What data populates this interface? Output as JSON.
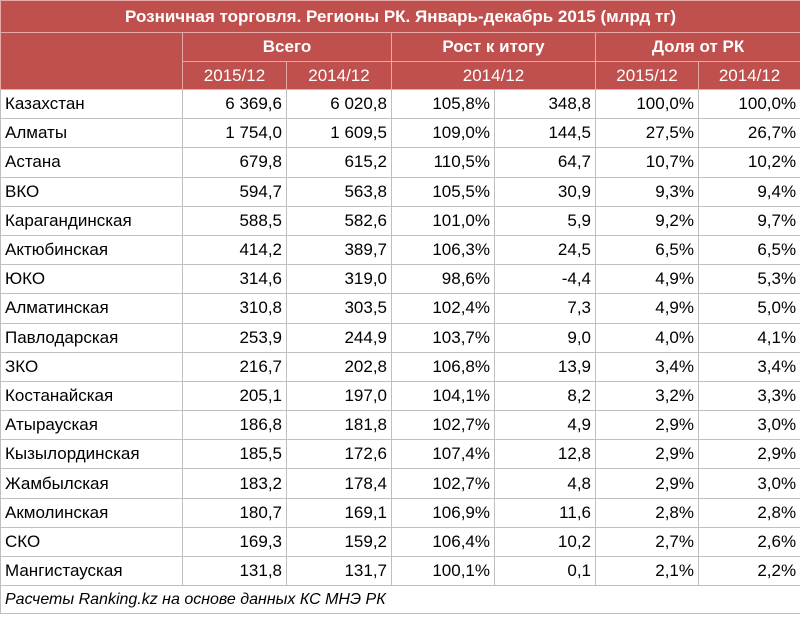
{
  "title": "Розничная торговля. Регионы РК. Январь-декабрь 2015 (млрд тг)",
  "groups": {
    "total": "Всего",
    "growth": "Рост к итогу",
    "share": "Доля от РК"
  },
  "sub": {
    "total_2015": "2015/12",
    "total_2014": "2014/12",
    "growth_period": "2014/12",
    "share_2015": "2015/12",
    "share_2014": "2014/12"
  },
  "rows": [
    {
      "region": "Казахстан",
      "v2015": "6 369,6",
      "v2014": "6 020,8",
      "growth_pct": "105,8%",
      "growth_abs": "348,8",
      "share2015": "100,0%",
      "share2014": "100,0%"
    },
    {
      "region": "Алматы",
      "v2015": "1 754,0",
      "v2014": "1 609,5",
      "growth_pct": "109,0%",
      "growth_abs": "144,5",
      "share2015": "27,5%",
      "share2014": "26,7%"
    },
    {
      "region": "Астана",
      "v2015": "679,8",
      "v2014": "615,2",
      "growth_pct": "110,5%",
      "growth_abs": "64,7",
      "share2015": "10,7%",
      "share2014": "10,2%"
    },
    {
      "region": "ВКО",
      "v2015": "594,7",
      "v2014": "563,8",
      "growth_pct": "105,5%",
      "growth_abs": "30,9",
      "share2015": "9,3%",
      "share2014": "9,4%"
    },
    {
      "region": "Карагандинская",
      "v2015": "588,5",
      "v2014": "582,6",
      "growth_pct": "101,0%",
      "growth_abs": "5,9",
      "share2015": "9,2%",
      "share2014": "9,7%"
    },
    {
      "region": "Актюбинская",
      "v2015": "414,2",
      "v2014": "389,7",
      "growth_pct": "106,3%",
      "growth_abs": "24,5",
      "share2015": "6,5%",
      "share2014": "6,5%"
    },
    {
      "region": "ЮКО",
      "v2015": "314,6",
      "v2014": "319,0",
      "growth_pct": "98,6%",
      "growth_abs": "-4,4",
      "share2015": "4,9%",
      "share2014": "5,3%"
    },
    {
      "region": "Алматинская",
      "v2015": "310,8",
      "v2014": "303,5",
      "growth_pct": "102,4%",
      "growth_abs": "7,3",
      "share2015": "4,9%",
      "share2014": "5,0%"
    },
    {
      "region": "Павлодарская",
      "v2015": "253,9",
      "v2014": "244,9",
      "growth_pct": "103,7%",
      "growth_abs": "9,0",
      "share2015": "4,0%",
      "share2014": "4,1%"
    },
    {
      "region": "ЗКО",
      "v2015": "216,7",
      "v2014": "202,8",
      "growth_pct": "106,8%",
      "growth_abs": "13,9",
      "share2015": "3,4%",
      "share2014": "3,4%"
    },
    {
      "region": "Костанайская",
      "v2015": "205,1",
      "v2014": "197,0",
      "growth_pct": "104,1%",
      "growth_abs": "8,2",
      "share2015": "3,2%",
      "share2014": "3,3%"
    },
    {
      "region": "Атырауская",
      "v2015": "186,8",
      "v2014": "181,8",
      "growth_pct": "102,7%",
      "growth_abs": "4,9",
      "share2015": "2,9%",
      "share2014": "3,0%"
    },
    {
      "region": "Кызылординская",
      "v2015": "185,5",
      "v2014": "172,6",
      "growth_pct": "107,4%",
      "growth_abs": "12,8",
      "share2015": "2,9%",
      "share2014": "2,9%"
    },
    {
      "region": "Жамбылская",
      "v2015": "183,2",
      "v2014": "178,4",
      "growth_pct": "102,7%",
      "growth_abs": "4,8",
      "share2015": "2,9%",
      "share2014": "3,0%"
    },
    {
      "region": "Акмолинская",
      "v2015": "180,7",
      "v2014": "169,1",
      "growth_pct": "106,9%",
      "growth_abs": "11,6",
      "share2015": "2,8%",
      "share2014": "2,8%"
    },
    {
      "region": "СКО",
      "v2015": "169,3",
      "v2014": "159,2",
      "growth_pct": "106,4%",
      "growth_abs": "10,2",
      "share2015": "2,7%",
      "share2014": "2,6%"
    },
    {
      "region": "Мангистауская",
      "v2015": "131,8",
      "v2014": "131,7",
      "growth_pct": "100,1%",
      "growth_abs": "0,1",
      "share2015": "2,1%",
      "share2014": "2,2%"
    }
  ],
  "footer": "Расчеты Ranking.kz на основе данных КС МНЭ РК",
  "colors": {
    "header_bg": "#c0504d",
    "header_text": "#ffffff",
    "grid": "#bfbfbf"
  }
}
